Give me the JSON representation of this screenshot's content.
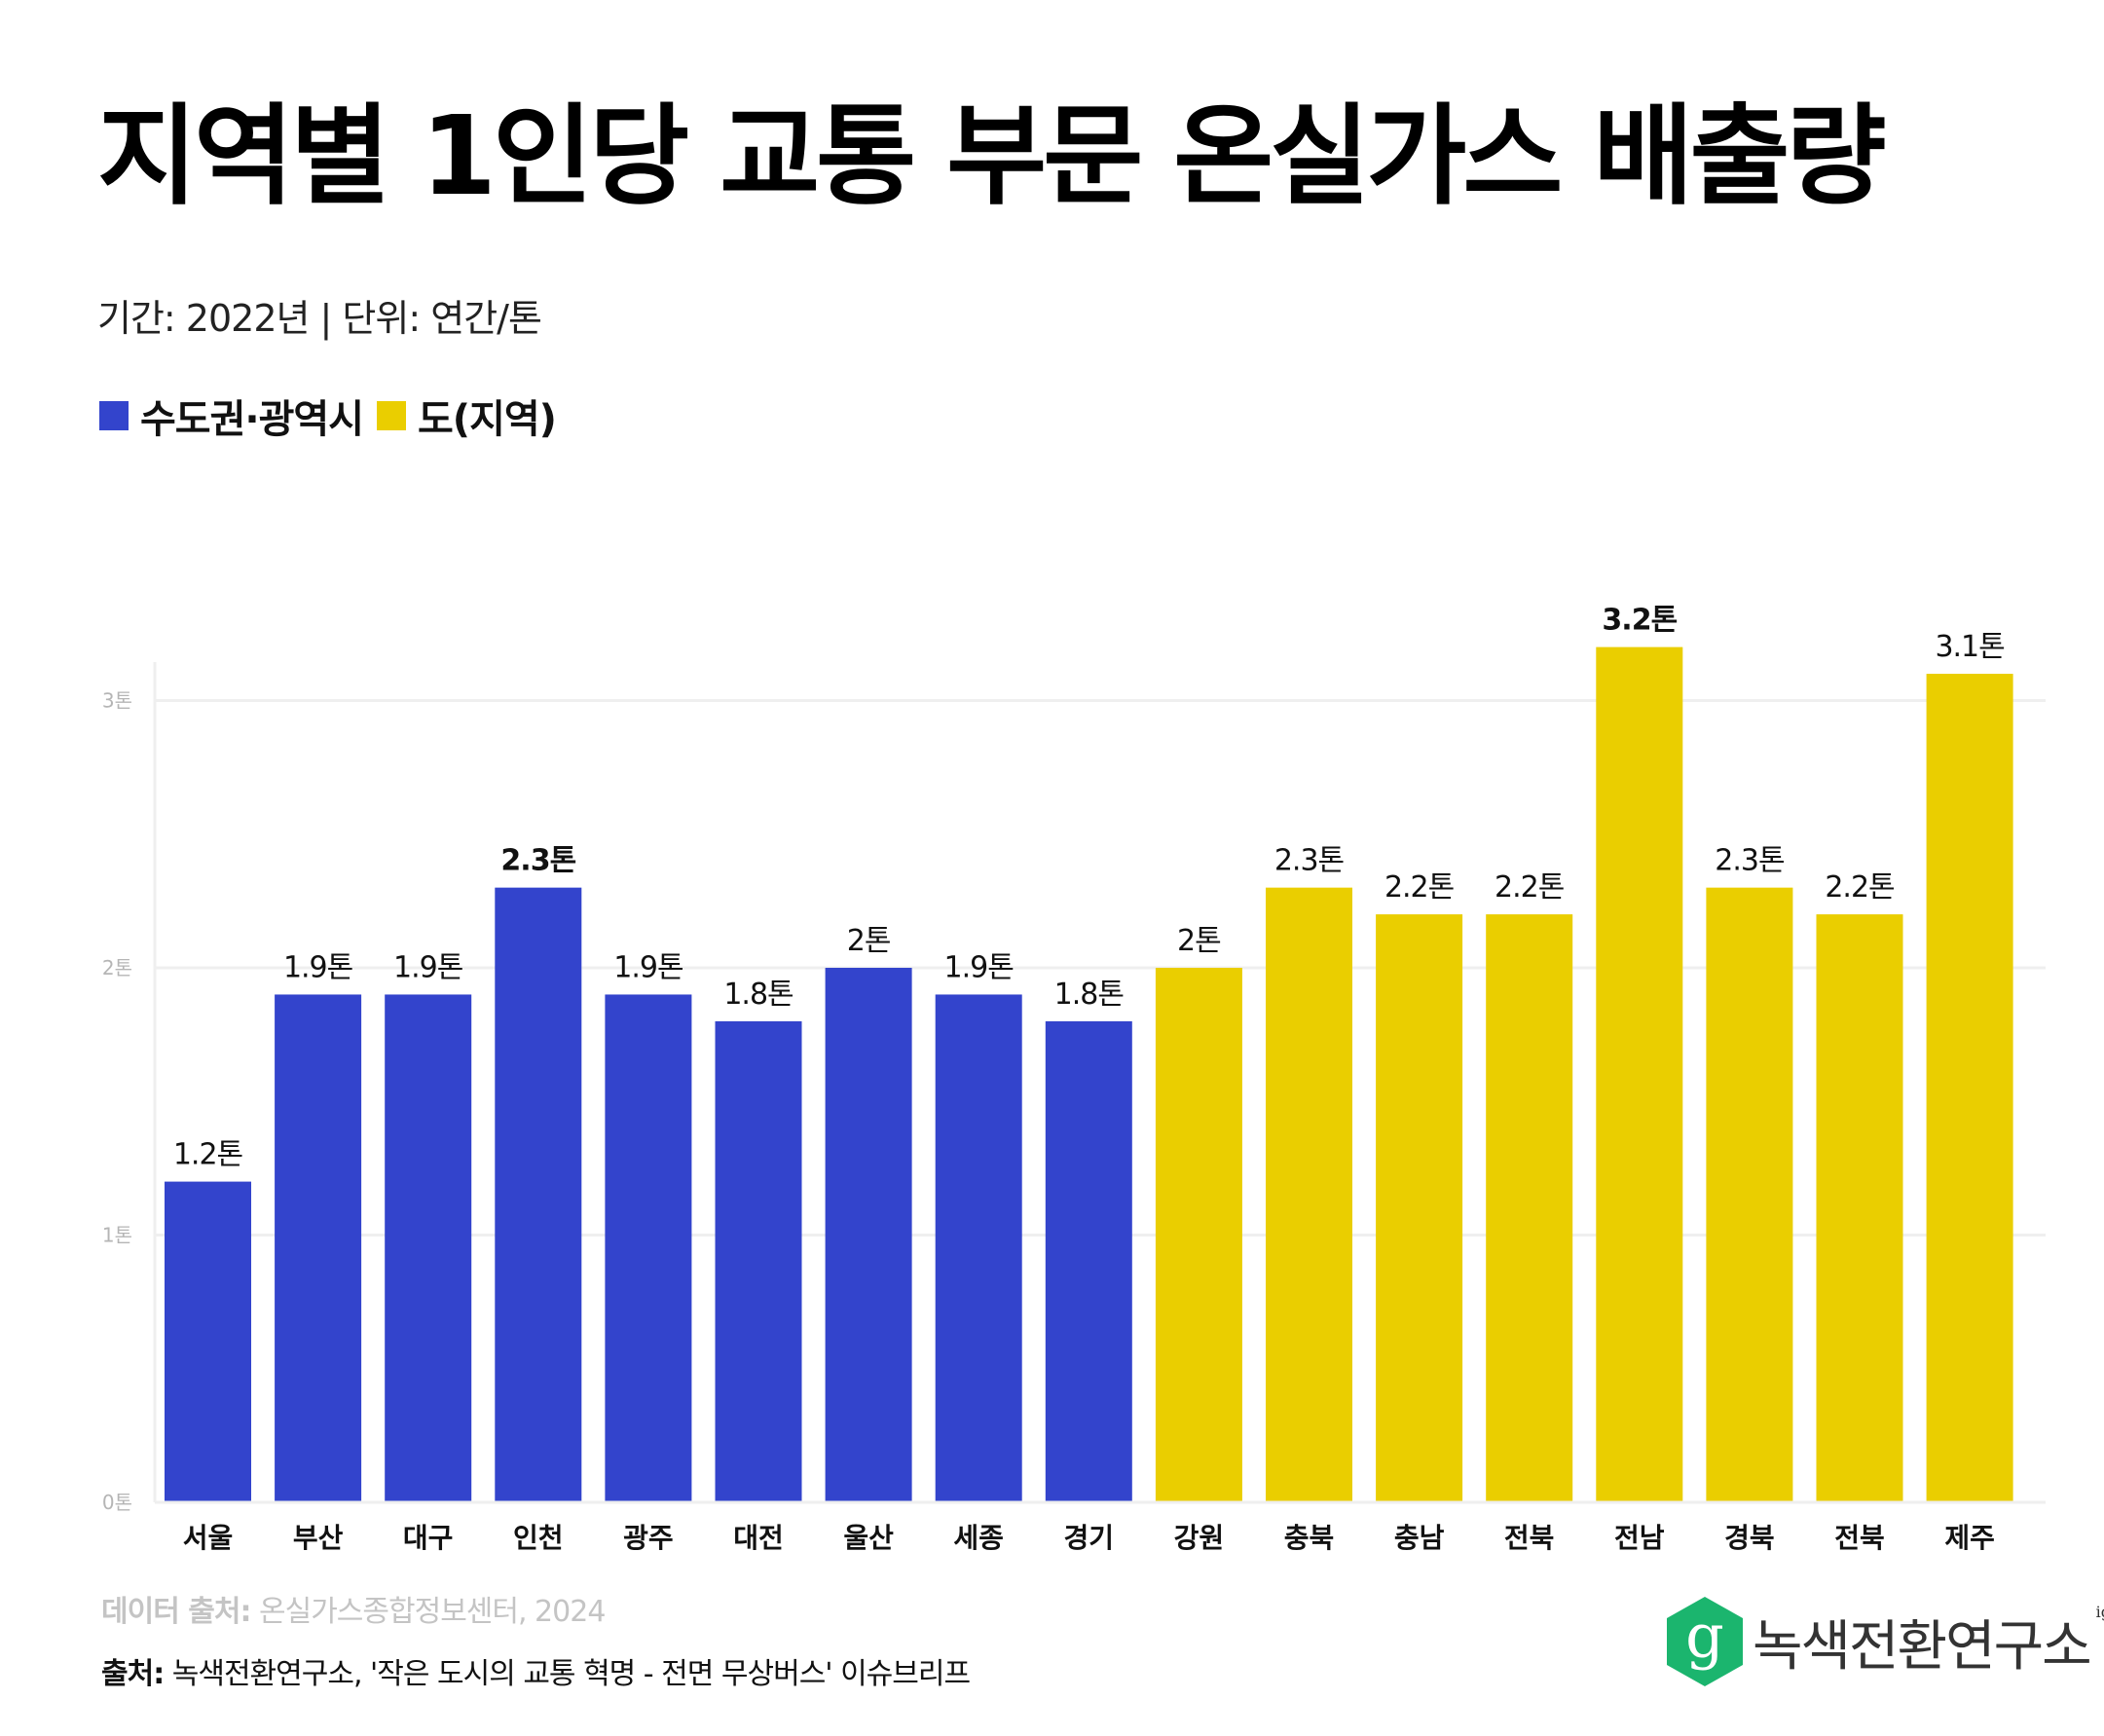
{
  "title": "지역별 1인당 교통 부문 온실가스 배출량",
  "subtitle": "기간: 2022년  |  단위: 연간/톤",
  "legend": [
    {
      "label": "수도권·광역시",
      "color": "#3344CC"
    },
    {
      "label": "도(지역)",
      "color": "#EACE00"
    }
  ],
  "footer": {
    "data_source_label": "데이터 출처:",
    "data_source_value": " 온실가스종합정보센터, 2024",
    "source_label": "출처:",
    "source_value": " 녹색전환연구소, '작은 도시의 교통 혁명 - 전면 무상버스' 이슈브리프"
  },
  "logo": {
    "icon": "g-hexagon-icon",
    "icon_letter": "g",
    "name": "녹색전환연구소",
    "superscript": "igt",
    "color": "#1BB56E"
  },
  "chart_data": {
    "type": "bar",
    "title": "지역별 1인당 교통 부문 온실가스 배출량",
    "xlabel": "",
    "ylabel": "",
    "unit": "톤",
    "ylim": [
      0,
      3.3
    ],
    "yticks": [
      0,
      1,
      2,
      3
    ],
    "ytick_labels": [
      "0톤",
      "1톤",
      "2톤",
      "3톤"
    ],
    "grid": true,
    "legend_position": "top-left",
    "categories": [
      "서울",
      "부산",
      "대구",
      "인천",
      "광주",
      "대전",
      "울산",
      "세종",
      "경기",
      "강원",
      "충북",
      "충남",
      "전북",
      "전남",
      "경북",
      "전북",
      "제주"
    ],
    "values": [
      1.2,
      1.9,
      1.9,
      2.3,
      1.9,
      1.8,
      2.0,
      1.9,
      1.8,
      2.0,
      2.3,
      2.2,
      2.2,
      3.2,
      2.3,
      2.2,
      3.1
    ],
    "data_labels": [
      "1.2톤",
      "1.9톤",
      "1.9톤",
      "2.3톤",
      "1.9톤",
      "1.8톤",
      "2톤",
      "1.9톤",
      "1.8톤",
      "2톤",
      "2.3톤",
      "2.2톤",
      "2.2톤",
      "3.2톤",
      "2.3톤",
      "2.2톤",
      "3.1톤"
    ],
    "highlighted": [
      false,
      false,
      false,
      true,
      false,
      false,
      false,
      false,
      false,
      false,
      false,
      false,
      false,
      true,
      false,
      false,
      false
    ],
    "groups": [
      "수도권·광역시",
      "수도권·광역시",
      "수도권·광역시",
      "수도권·광역시",
      "수도권·광역시",
      "수도권·광역시",
      "수도권·광역시",
      "수도권·광역시",
      "수도권·광역시",
      "도(지역)",
      "도(지역)",
      "도(지역)",
      "도(지역)",
      "도(지역)",
      "도(지역)",
      "도(지역)",
      "도(지역)"
    ],
    "series": [
      {
        "name": "수도권·광역시",
        "color": "#3344CC"
      },
      {
        "name": "도(지역)",
        "color": "#EACE00"
      }
    ]
  }
}
